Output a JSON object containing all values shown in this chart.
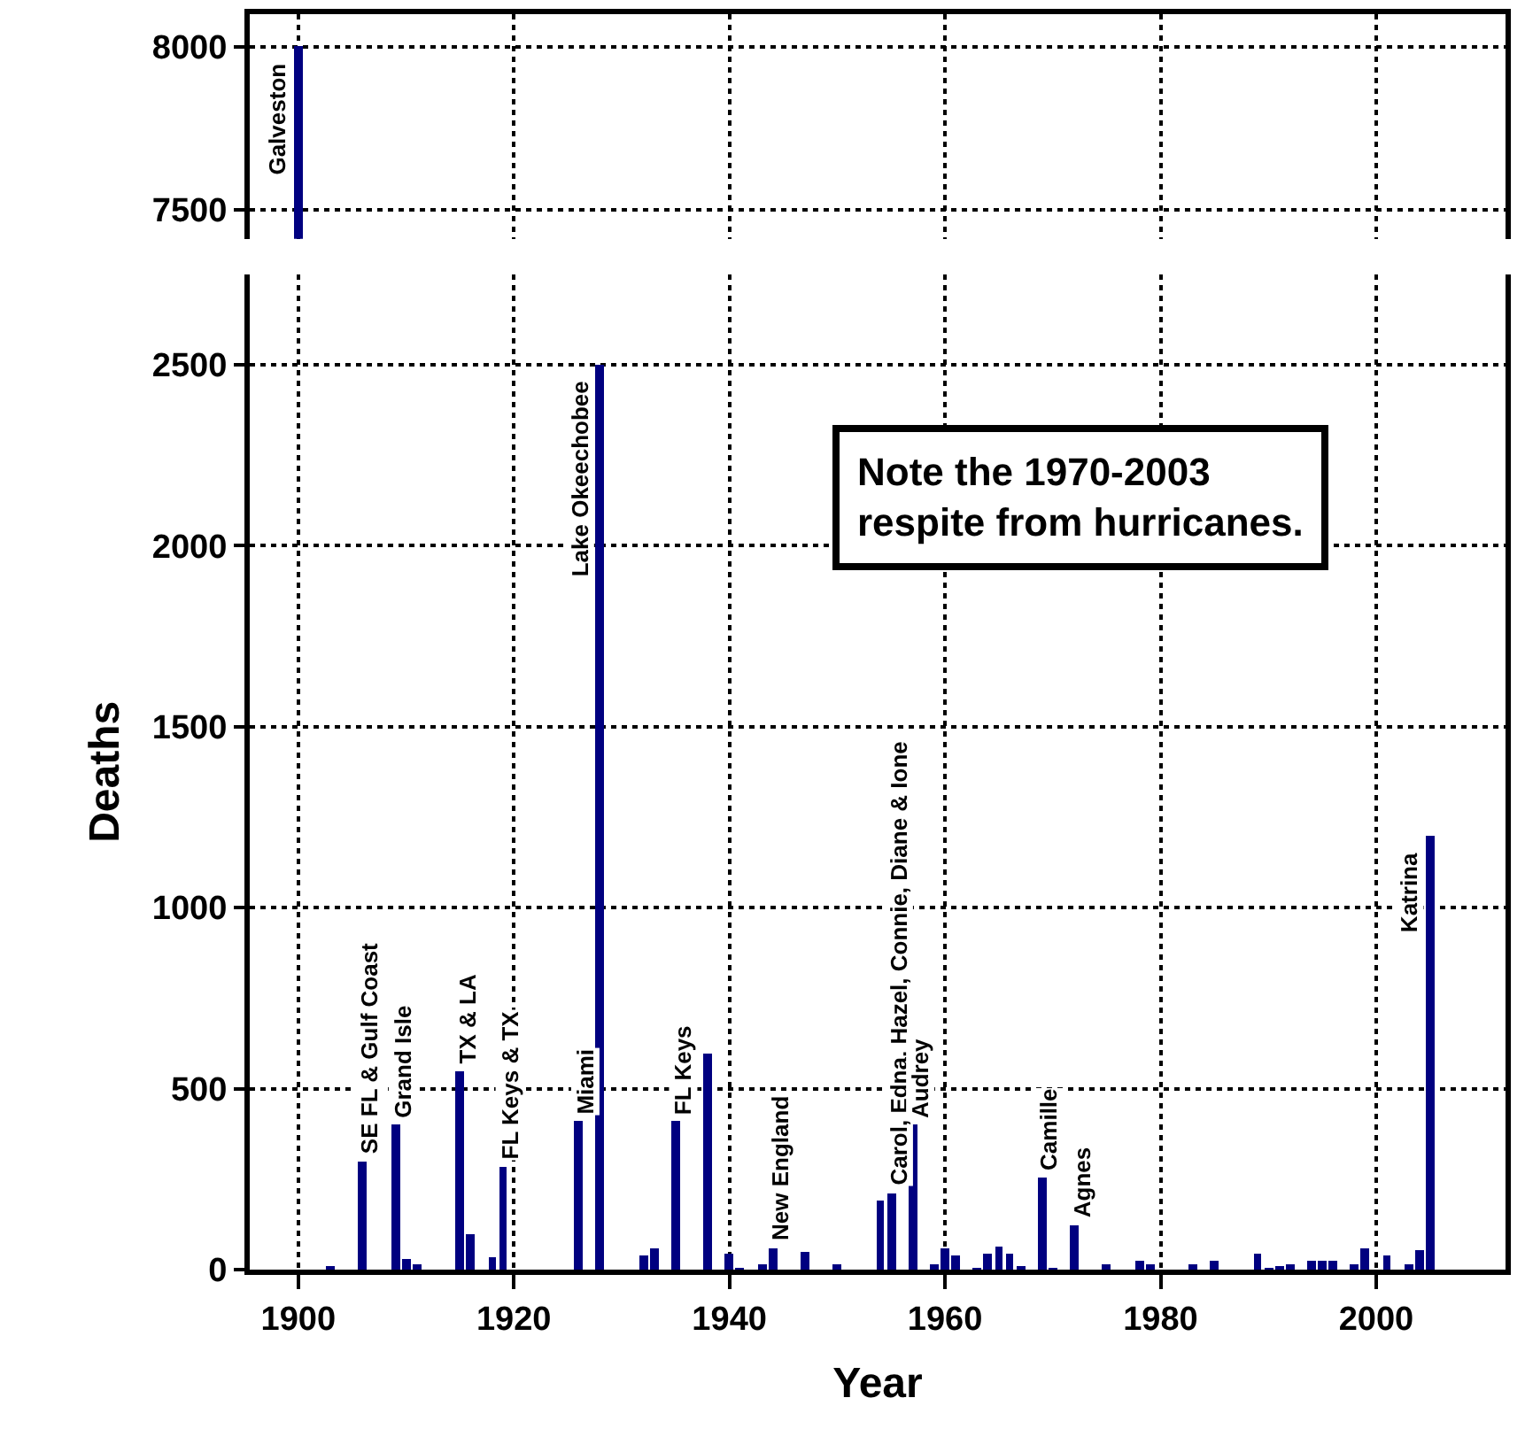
{
  "chart_data": [
    {
      "type": "bar",
      "x": [
        1900
      ],
      "values": [
        8000
      ],
      "color": "#000080",
      "xlim": [
        1895.5,
        2012
      ],
      "xticks": [
        1900,
        1920,
        1940,
        1960,
        1980,
        2000
      ],
      "ylim": [
        7410,
        8100
      ],
      "yticks": [
        7500,
        8000
      ],
      "grid": true,
      "tick_labels": "y",
      "annotations": [
        {
          "text": "Galveston",
          "x": 1900,
          "y": 8000
        }
      ]
    },
    {
      "type": "bar",
      "xlabel": "Year",
      "ylabel": "Deaths",
      "color": "#000080",
      "xlim": [
        1895.5,
        2012
      ],
      "xticks": [
        1900,
        1920,
        1940,
        1960,
        1980,
        2000
      ],
      "ylim": [
        0,
        2750
      ],
      "yticks": [
        0,
        500,
        1000,
        1500,
        2000,
        2500
      ],
      "grid": true,
      "x": [
        1903,
        1906,
        1909,
        1910,
        1911,
        1915,
        1916,
        1918,
        1919,
        1926,
        1928,
        1932,
        1933,
        1935,
        1938,
        1940,
        1941,
        1943,
        1944,
        1947,
        1950,
        1954,
        1955,
        1957,
        1959,
        1960,
        1961,
        1963,
        1964,
        1965,
        1966,
        1967,
        1969,
        1970,
        1972,
        1975,
        1978,
        1979,
        1983,
        1985,
        1989,
        1990,
        1991,
        1992,
        1994,
        1995,
        1996,
        1998,
        1999,
        2001,
        2003,
        2004,
        2005
      ],
      "values": [
        10,
        300,
        400,
        30,
        18,
        550,
        100,
        34,
        285,
        410,
        2500,
        40,
        62,
        410,
        600,
        46,
        8,
        16,
        62,
        51,
        16,
        190,
        212,
        400,
        17,
        58,
        40,
        3,
        45,
        66,
        46,
        13,
        256,
        3,
        122,
        17,
        28,
        17,
        17,
        25,
        46,
        8,
        13,
        17,
        28,
        25,
        28,
        17,
        58,
        38,
        17,
        53,
        1200
      ],
      "annotations": [
        {
          "text": "SE FL & Gulf Coast",
          "x": 1906,
          "y": 300
        },
        {
          "text": "Grand Isle",
          "x": 1909,
          "y": 400
        },
        {
          "text": "TX & LA",
          "x": 1915,
          "y": 550
        },
        {
          "text": "FL Keys & TX",
          "x": 1919,
          "y": 285
        },
        {
          "text": "Miami",
          "x": 1926,
          "y": 410
        },
        {
          "text": "Lake Okeechobee",
          "x": 1928,
          "y": 2500
        },
        {
          "text": "FL Keys",
          "x": 1935,
          "y": 410
        },
        {
          "text": "New England",
          "x": 1944,
          "y": 62
        },
        {
          "text": "Carol, Edna, Hazel, Connie, Diane & Ione",
          "x": 1955,
          "y": 212
        },
        {
          "text": "Audrey",
          "x": 1957,
          "y": 400
        },
        {
          "text": "Camille",
          "x": 1969,
          "y": 256
        },
        {
          "text": "Agnes",
          "x": 1972,
          "y": 122
        },
        {
          "text": "Katrina",
          "x": 2005,
          "y": 1200
        },
        "Note the 1970-2003\nrespite from hurricanes."
      ]
    }
  ]
}
